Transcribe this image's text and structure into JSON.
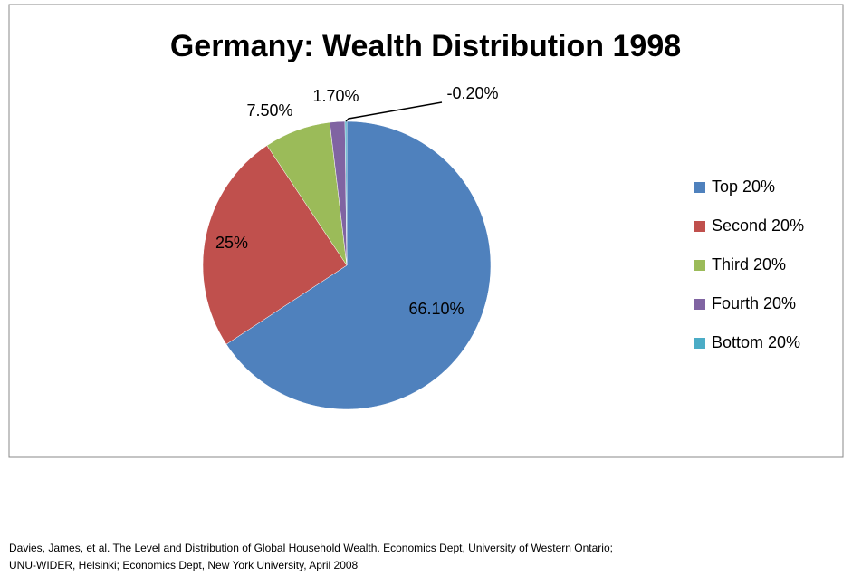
{
  "chart_data": {
    "type": "pie",
    "title": "Germany: Wealth Distribution 1998",
    "categories": [
      "Top 20%",
      "Second 20%",
      "Third 20%",
      "Fourth 20%",
      "Bottom 20%"
    ],
    "values": [
      66.1,
      25,
      7.5,
      1.7,
      -0.2
    ],
    "value_labels": [
      "66.10%",
      "25%",
      "7.50%",
      "1.70%",
      "-0.20%"
    ],
    "colors": [
      "#4f81bd",
      "#c0504d",
      "#9bbb59",
      "#8064a2",
      "#4bacc6"
    ],
    "legend": "right"
  },
  "source": [
    "Davies, James, et al. The Level and Distribution of Global Household Wealth. Economics Dept, University of Western Ontario;",
    "UNU-WIDER, Helsinki; Economics Dept, New York University, April 2008"
  ]
}
